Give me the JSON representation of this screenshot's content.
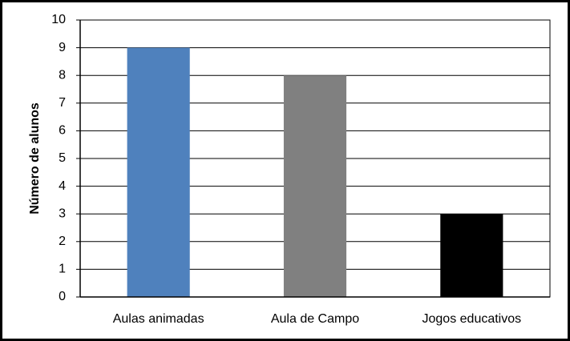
{
  "chart_data": {
    "type": "bar",
    "y_label": "Número de alunos",
    "categories": [
      "Aulas animadas",
      "Aula de Campo",
      "Jogos educativos"
    ],
    "values": [
      9,
      8,
      3
    ],
    "colors": [
      "#4f81bd",
      "#808080",
      "#000000"
    ],
    "ylim": [
      0,
      10
    ],
    "yticks": [
      0,
      1,
      2,
      3,
      4,
      5,
      6,
      7,
      8,
      9,
      10
    ],
    "grid": true
  }
}
